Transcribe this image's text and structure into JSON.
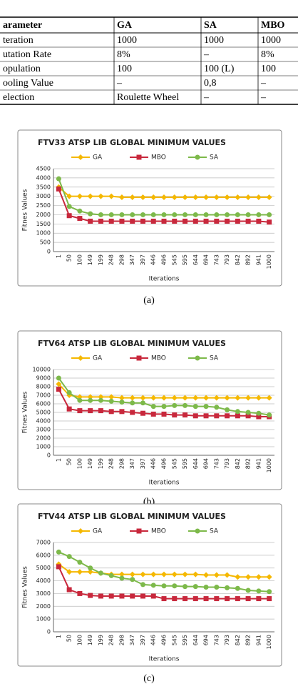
{
  "table": {
    "header": [
      "arameter",
      "GA",
      "SA",
      "MBO"
    ],
    "rows": [
      [
        "teration",
        "1000",
        "1000",
        "1000"
      ],
      [
        "utation Rate",
        "8%",
        "–",
        "8%"
      ],
      [
        "opulation",
        "100",
        "100 (L)",
        "100"
      ],
      [
        "ooling Value",
        "–",
        "0,8",
        "–"
      ],
      [
        "election",
        "Roulette Wheel",
        "–",
        "–"
      ]
    ]
  },
  "chart_data": [
    {
      "type": "line",
      "title": "FTV33 ATSP LIB  GLOBAL MINIMUM VALUES",
      "x_label": "Iterations",
      "y_label": "Fitnes Values",
      "caption": "(a)",
      "categories": [
        "1",
        "50",
        "100",
        "149",
        "199",
        "248",
        "298",
        "347",
        "397",
        "446",
        "496",
        "545",
        "595",
        "644",
        "694",
        "743",
        "793",
        "842",
        "892",
        "941",
        "1000"
      ],
      "ylim": [
        0,
        4500
      ],
      "yticks": [
        0,
        500,
        1000,
        1500,
        2000,
        2500,
        3000,
        3500,
        4000,
        4500
      ],
      "grid": true,
      "series": [
        {
          "name": "GA",
          "color": "#f5b800",
          "marker": "diamond",
          "values": [
            3500,
            3000,
            3000,
            3000,
            3000,
            3000,
            2950,
            2950,
            2950,
            2950,
            2950,
            2950,
            2950,
            2950,
            2950,
            2950,
            2950,
            2950,
            2950,
            2950,
            2950
          ]
        },
        {
          "name": "MBO",
          "color": "#c8283c",
          "marker": "square",
          "values": [
            3400,
            1950,
            1800,
            1650,
            1650,
            1650,
            1650,
            1650,
            1650,
            1650,
            1650,
            1650,
            1650,
            1650,
            1650,
            1650,
            1650,
            1650,
            1650,
            1650,
            1600
          ]
        },
        {
          "name": "SA",
          "color": "#7db94a",
          "marker": "circle",
          "values": [
            3950,
            2450,
            2200,
            2050,
            2000,
            2000,
            2000,
            2000,
            2000,
            2000,
            2000,
            2000,
            2000,
            2000,
            2000,
            2000,
            2000,
            2000,
            2000,
            2000,
            2000
          ]
        }
      ]
    },
    {
      "type": "line",
      "title": "FTV64 ATSP LIB  GLOBAL MINIMUM VALUES",
      "x_label": "Iterations",
      "y_label": "Fitnes Values",
      "caption": "(b)",
      "categories": [
        "1",
        "50",
        "100",
        "149",
        "199",
        "248",
        "298",
        "347",
        "397",
        "446",
        "496",
        "545",
        "595",
        "644",
        "694",
        "743",
        "793",
        "842",
        "892",
        "941",
        "1000"
      ],
      "ylim": [
        0,
        10000
      ],
      "yticks": [
        0,
        1000,
        2000,
        3000,
        4000,
        5000,
        6000,
        7000,
        8000,
        9000,
        10000
      ],
      "grid": true,
      "series": [
        {
          "name": "GA",
          "color": "#f5b800",
          "marker": "diamond",
          "values": [
            8300,
            7000,
            6800,
            6800,
            6800,
            6800,
            6700,
            6700,
            6700,
            6700,
            6700,
            6700,
            6700,
            6700,
            6700,
            6700,
            6700,
            6700,
            6700,
            6700,
            6700
          ]
        },
        {
          "name": "MBO",
          "color": "#c8283c",
          "marker": "square",
          "values": [
            7700,
            5400,
            5200,
            5200,
            5200,
            5100,
            5100,
            5000,
            4900,
            4800,
            4800,
            4700,
            4700,
            4600,
            4600,
            4600,
            4600,
            4600,
            4600,
            4500,
            4500
          ]
        },
        {
          "name": "SA",
          "color": "#7db94a",
          "marker": "circle",
          "values": [
            9000,
            7300,
            6400,
            6400,
            6400,
            6300,
            6200,
            6100,
            6100,
            5700,
            5700,
            5800,
            5800,
            5700,
            5700,
            5600,
            5300,
            5100,
            5000,
            4900,
            4700
          ]
        }
      ]
    },
    {
      "type": "line",
      "title": "FTV44 ATSP LIB  GLOBAL MINIMUM VALUES",
      "x_label": "Iterations",
      "y_label": "Fitnes Values",
      "caption": "(c)",
      "categories": [
        "1",
        "50",
        "100",
        "149",
        "199",
        "248",
        "298",
        "347",
        "397",
        "446",
        "496",
        "545",
        "595",
        "644",
        "694",
        "743",
        "793",
        "842",
        "892",
        "941",
        "1000"
      ],
      "ylim": [
        0,
        7000
      ],
      "yticks": [
        0,
        1000,
        2000,
        3000,
        4000,
        5000,
        6000,
        7000
      ],
      "grid": true,
      "series": [
        {
          "name": "GA",
          "color": "#f5b800",
          "marker": "diamond",
          "values": [
            5300,
            4700,
            4700,
            4700,
            4600,
            4500,
            4500,
            4500,
            4500,
            4500,
            4500,
            4500,
            4500,
            4500,
            4450,
            4450,
            4450,
            4300,
            4300,
            4300,
            4300
          ]
        },
        {
          "name": "MBO",
          "color": "#c8283c",
          "marker": "square",
          "values": [
            5100,
            3300,
            3000,
            2850,
            2800,
            2800,
            2800,
            2800,
            2800,
            2800,
            2600,
            2600,
            2600,
            2600,
            2600,
            2600,
            2600,
            2600,
            2600,
            2600,
            2600
          ]
        },
        {
          "name": "SA",
          "color": "#7db94a",
          "marker": "circle",
          "values": [
            6250,
            5900,
            5450,
            5000,
            4600,
            4400,
            4200,
            4100,
            3700,
            3650,
            3600,
            3600,
            3550,
            3550,
            3500,
            3500,
            3450,
            3400,
            3250,
            3200,
            3150
          ]
        }
      ]
    }
  ]
}
